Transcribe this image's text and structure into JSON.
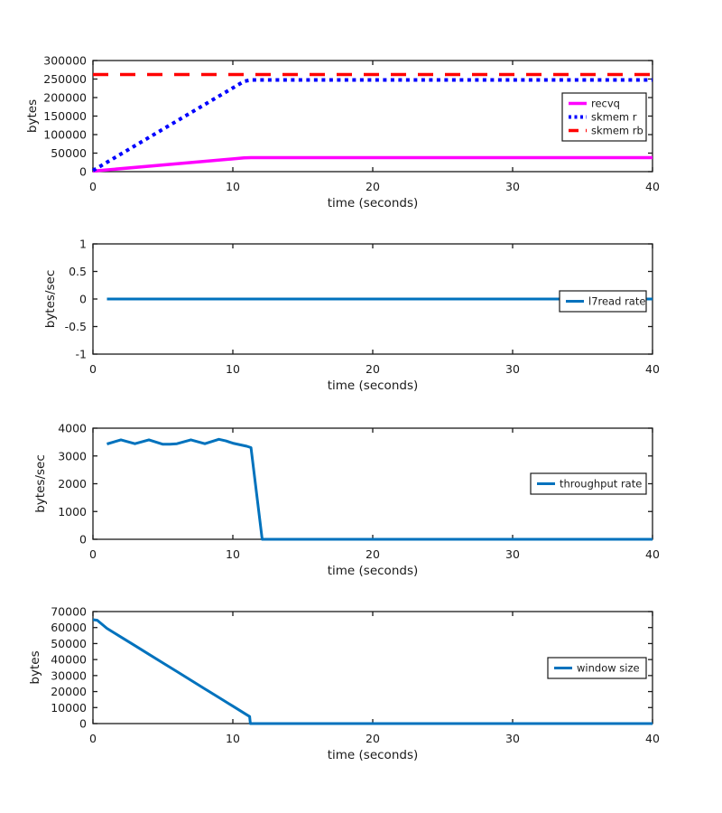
{
  "figure": {
    "background": "#ffffff",
    "frame_color": "#1a1a1a",
    "text_color": "#1a1a1a",
    "default_series_color": "#0072bd"
  },
  "chart_data": [
    {
      "type": "line",
      "title": "",
      "xlabel": "time (seconds)",
      "ylabel": "bytes",
      "xlim": [
        0,
        40
      ],
      "ylim": [
        0,
        300000
      ],
      "xticks": [
        0,
        10,
        20,
        30,
        40
      ],
      "yticks": [
        0,
        50000,
        100000,
        150000,
        200000,
        250000,
        300000
      ],
      "grid": false,
      "legend_position": "right-inside",
      "series": [
        {
          "name": "recvq",
          "color": "#ff00ff",
          "dash": "solid",
          "width": 3.5,
          "x": [
            0,
            10.8,
            11.3,
            40
          ],
          "y": [
            1500,
            37000,
            37800,
            37800
          ]
        },
        {
          "name": "skmem r",
          "color": "#0000ff",
          "dash": "dotted",
          "width": 4,
          "x": [
            0,
            10.8,
            11.3,
            40
          ],
          "y": [
            3000,
            244000,
            247500,
            247500
          ]
        },
        {
          "name": "skmem rb",
          "color": "#ff0000",
          "dash": "dashed",
          "width": 3.5,
          "x": [
            0,
            40
          ],
          "y": [
            262144,
            262144
          ]
        }
      ]
    },
    {
      "type": "line",
      "title": "",
      "xlabel": "time (seconds)",
      "ylabel": "bytes/sec",
      "xlim": [
        0,
        40
      ],
      "ylim": [
        -1,
        1
      ],
      "xticks": [
        0,
        10,
        20,
        30,
        40
      ],
      "yticks": [
        -1,
        -0.5,
        0,
        0.5,
        1
      ],
      "grid": false,
      "legend_position": "right-inside",
      "series": [
        {
          "name": "l7read rate",
          "color": "#0072bd",
          "dash": "solid",
          "width": 3,
          "x": [
            1,
            40
          ],
          "y": [
            0,
            0
          ]
        }
      ]
    },
    {
      "type": "line",
      "title": "",
      "xlabel": "time (seconds)",
      "ylabel": "bytes/sec",
      "xlim": [
        0,
        40
      ],
      "ylim": [
        0,
        4000
      ],
      "xticks": [
        0,
        10,
        20,
        30,
        40
      ],
      "yticks": [
        0,
        1000,
        2000,
        3000,
        4000
      ],
      "grid": false,
      "legend_position": "right-inside",
      "series": [
        {
          "name": "throughput rate",
          "color": "#0072bd",
          "dash": "solid",
          "width": 3,
          "x": [
            1,
            2,
            3,
            4,
            5,
            5.5,
            6,
            7,
            8,
            9,
            9.5,
            10,
            11,
            11.3,
            12.1,
            13,
            40
          ],
          "y": [
            3430,
            3580,
            3440,
            3580,
            3420,
            3420,
            3440,
            3580,
            3440,
            3600,
            3540,
            3460,
            3350,
            3300,
            0,
            0,
            0
          ]
        }
      ]
    },
    {
      "type": "line",
      "title": "",
      "xlabel": "time (seconds)",
      "ylabel": "bytes",
      "xlim": [
        0,
        40
      ],
      "ylim": [
        0,
        70000
      ],
      "xticks": [
        0,
        10,
        20,
        30,
        40
      ],
      "yticks": [
        0,
        10000,
        20000,
        30000,
        40000,
        50000,
        60000,
        70000
      ],
      "grid": false,
      "legend_position": "right-inside",
      "series": [
        {
          "name": "window size",
          "color": "#0072bd",
          "dash": "solid",
          "width": 3,
          "x": [
            0,
            0.3,
            1,
            2,
            3,
            4,
            5,
            6,
            7,
            8,
            9,
            10,
            11,
            11.2,
            11.25,
            12,
            40
          ],
          "y": [
            64900,
            64600,
            59500,
            54100,
            48700,
            43300,
            37900,
            32500,
            27100,
            21700,
            16300,
            10900,
            5500,
            4400,
            0,
            0,
            0
          ]
        }
      ]
    }
  ]
}
